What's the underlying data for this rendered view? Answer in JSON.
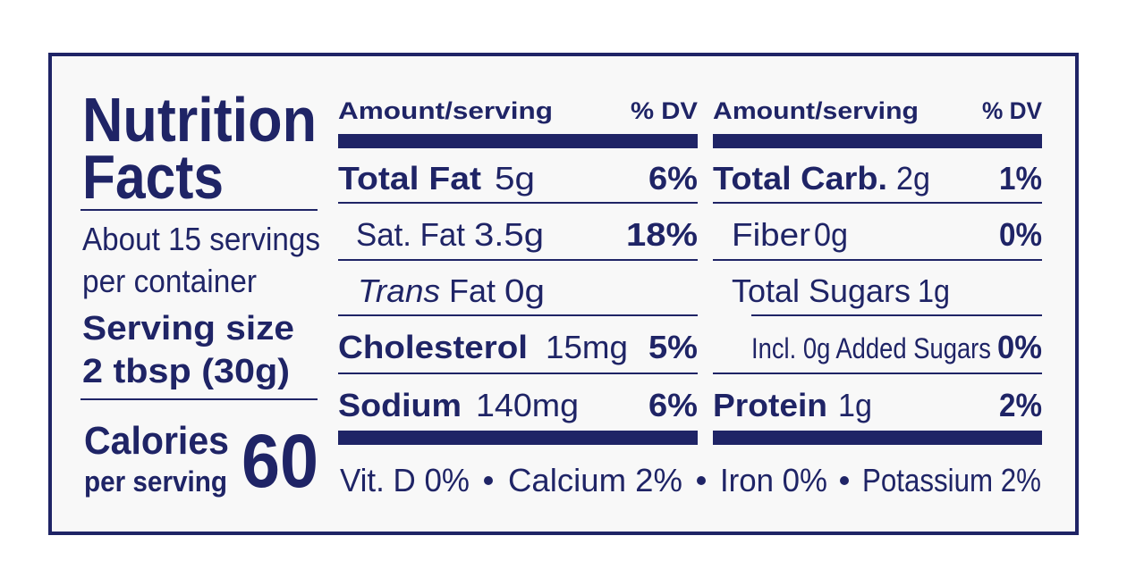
{
  "title": {
    "line1": "Nutrition",
    "line2": "Facts"
  },
  "servings": {
    "line1": "About 15 servings",
    "line2": "per container"
  },
  "serving_size": {
    "label": "Serving size",
    "value": "2 tbsp (30g)"
  },
  "calories": {
    "label": "Calories",
    "sublabel": "per serving",
    "value": "60"
  },
  "columns": [
    {
      "header": {
        "amount": "Amount/serving",
        "dv": "% DV"
      },
      "rows": [
        {
          "label": "Total Fat",
          "amount": "5g",
          "dv": "6%"
        },
        {
          "label": "Sat. Fat",
          "amount": "3.5g",
          "dv": "18%"
        },
        {
          "label_italic": "Trans",
          "label": "Fat",
          "amount": "0g"
        },
        {
          "label": "Cholesterol",
          "amount": "15mg",
          "dv": "5%"
        },
        {
          "label": "Sodium",
          "amount": "140mg",
          "dv": "6%"
        }
      ]
    },
    {
      "header": {
        "amount": "Amount/serving",
        "dv": "% DV"
      },
      "rows": [
        {
          "label": "Total Carb.",
          "amount": "2g",
          "dv": "1%"
        },
        {
          "label": "Fiber",
          "amount": "0g",
          "dv": "0%"
        },
        {
          "label": "Total Sugars",
          "amount": "1g"
        },
        {
          "label": "Incl. 0g Added Sugars",
          "dv": "0%"
        },
        {
          "label": "Protein",
          "amount": "1g",
          "dv": "2%"
        }
      ]
    }
  ],
  "footer": [
    "Vit. D 0%",
    "Calcium 2%",
    "Iron 0%",
    "Potassium 2%"
  ]
}
